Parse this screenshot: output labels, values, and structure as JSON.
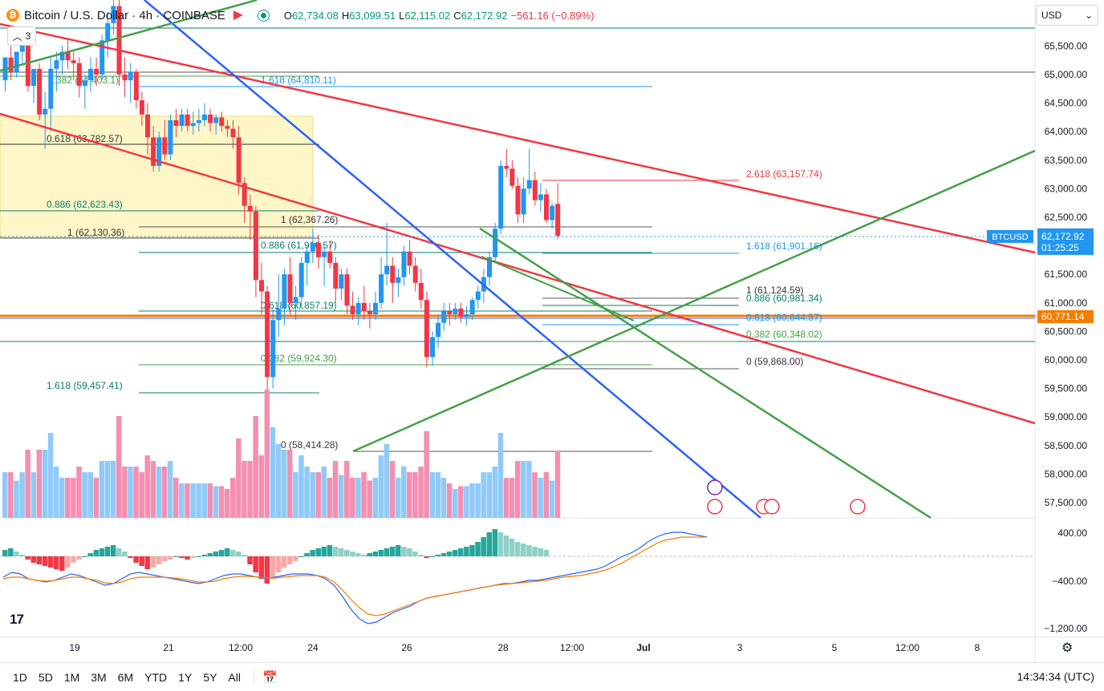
{
  "header": {
    "symbol": "Bitcoin / U.S. Dollar · 4h · COINBASE",
    "open_label": "O",
    "open": "62,734.08",
    "high_label": "H",
    "high": "63,099.51",
    "low_label": "L",
    "low": "62,115.02",
    "close_label": "C",
    "close": "62,172.92",
    "change": "−561.16 (−0.89%)",
    "indicator_count": "3",
    "coin_glyph": "₿"
  },
  "currency_select": {
    "value": "USD"
  },
  "footer": {
    "timeframes": [
      "1D",
      "5D",
      "1M",
      "3M",
      "6M",
      "YTD",
      "1Y",
      "5Y",
      "All"
    ],
    "clock": "14:34:34 (UTC)"
  },
  "colors": {
    "up": "#2196f3",
    "down": "#f23645",
    "up_vol": "#90caf9",
    "down_vol": "#f48fb1",
    "blue_line": "#2962ff",
    "red_line": "#f23645",
    "green_line": "#43a047",
    "orange": "#f57c00"
  },
  "chart_data": {
    "type": "candlestick",
    "symbol": "BTCUSD",
    "timeframe": "4h",
    "price_axis": {
      "ticks": [
        57500,
        58000,
        58500,
        59000,
        59500,
        60000,
        60500,
        61000,
        61500,
        62000,
        62500,
        63000,
        63500,
        64000,
        64500,
        65000,
        65500
      ],
      "tick_labels": [
        "57,500.00",
        "58,000.00",
        "58,500.00",
        "59,000.00",
        "59,500.00",
        "60,000.00",
        "60,500.00",
        "61,000.00",
        "61,500.00",
        "62,000.00",
        "62,500.00",
        "63,000.00",
        "63,500.00",
        "64,000.00",
        "64,500.00",
        "65,000.00",
        "65,500.00"
      ]
    },
    "time_axis": {
      "labels": [
        "19",
        "21",
        "12:00",
        "24",
        "26",
        "28",
        "12:00",
        "Jul",
        "3",
        "5",
        "12:00",
        "8"
      ]
    },
    "last_price": {
      "label": "BTCUSD",
      "value": "62,172.92",
      "countdown": "01:25:25"
    },
    "level_marker": {
      "value": "60,771.14"
    },
    "candles": [
      [
        64900,
        65300,
        64700,
        65300
      ],
      [
        65300,
        65500,
        64900,
        65050
      ],
      [
        65050,
        65400,
        64950,
        65400
      ],
      [
        65400,
        65800,
        65200,
        65650
      ],
      [
        65650,
        65700,
        64700,
        64800
      ],
      [
        64800,
        65100,
        64500,
        65100
      ],
      [
        65100,
        65200,
        64200,
        64300
      ],
      [
        64300,
        64700,
        63700,
        64400
      ],
      [
        64400,
        65300,
        64000,
        65100
      ],
      [
        65100,
        65400,
        64700,
        65250
      ],
      [
        65250,
        65500,
        65000,
        65400
      ],
      [
        65400,
        65600,
        65100,
        65250
      ],
      [
        65250,
        65400,
        64900,
        65200
      ],
      [
        65200,
        65300,
        64600,
        64800
      ],
      [
        64800,
        65000,
        64400,
        64900
      ],
      [
        64900,
        65300,
        64700,
        65100
      ],
      [
        65100,
        65300,
        64800,
        65000
      ],
      [
        65000,
        65700,
        64900,
        65600
      ],
      [
        65600,
        66100,
        65300,
        65900
      ],
      [
        65900,
        66500,
        65700,
        66200
      ],
      [
        66200,
        66400,
        64800,
        65000
      ],
      [
        65000,
        65300,
        64600,
        64900
      ],
      [
        64900,
        65200,
        64500,
        65050
      ],
      [
        65050,
        65100,
        64400,
        64550
      ],
      [
        64550,
        64700,
        64100,
        64300
      ],
      [
        64300,
        64500,
        63600,
        63900
      ],
      [
        63900,
        64100,
        63300,
        63400
      ],
      [
        63400,
        64000,
        63300,
        63900
      ],
      [
        63900,
        64200,
        63500,
        63600
      ],
      [
        63600,
        64300,
        63500,
        64200
      ],
      [
        64200,
        64400,
        63900,
        64100
      ],
      [
        64100,
        64400,
        64000,
        64300
      ],
      [
        64300,
        64400,
        64000,
        64100
      ],
      [
        64100,
        64350,
        63950,
        64150
      ],
      [
        64150,
        64400,
        64000,
        64200
      ],
      [
        64200,
        64500,
        64100,
        64300
      ],
      [
        64300,
        64400,
        64000,
        64150
      ],
      [
        64150,
        64300,
        63950,
        64250
      ],
      [
        64250,
        64350,
        64000,
        64100
      ],
      [
        64100,
        64200,
        63900,
        64050
      ],
      [
        64050,
        64200,
        63700,
        63900
      ],
      [
        63900,
        64100,
        62900,
        63100
      ],
      [
        63100,
        63200,
        62400,
        62700
      ],
      [
        62700,
        62900,
        62100,
        62600
      ],
      [
        62600,
        62700,
        61100,
        61400
      ],
      [
        61400,
        61700,
        60800,
        61200
      ],
      [
        61200,
        61300,
        58414,
        59700
      ],
      [
        59700,
        60900,
        59500,
        60700
      ],
      [
        60700,
        61500,
        60400,
        60900
      ],
      [
        60900,
        61600,
        60600,
        61500
      ],
      [
        61500,
        61800,
        60800,
        61000
      ],
      [
        61000,
        61300,
        60700,
        61100
      ],
      [
        61100,
        61800,
        60900,
        61700
      ],
      [
        61700,
        62000,
        61300,
        61900
      ],
      [
        61900,
        62300,
        61700,
        62050
      ],
      [
        62050,
        62200,
        61600,
        61800
      ],
      [
        61800,
        62000,
        61300,
        61900
      ],
      [
        61900,
        62100,
        61600,
        61700
      ],
      [
        61700,
        61800,
        61000,
        61250
      ],
      [
        61250,
        61600,
        61050,
        61500
      ],
      [
        61500,
        61600,
        60800,
        60950
      ],
      [
        60950,
        61200,
        60700,
        60800
      ],
      [
        60800,
        61100,
        60600,
        61000
      ],
      [
        61000,
        61300,
        60700,
        60850
      ],
      [
        60850,
        61000,
        60550,
        60800
      ],
      [
        60800,
        61200,
        60700,
        61000
      ],
      [
        61000,
        61800,
        60900,
        61500
      ],
      [
        61500,
        62400,
        61300,
        61650
      ],
      [
        61650,
        61800,
        61000,
        61350
      ],
      [
        61350,
        61600,
        61100,
        61450
      ],
      [
        61450,
        62000,
        61300,
        61900
      ],
      [
        61900,
        62100,
        61500,
        61650
      ],
      [
        61650,
        61800,
        61200,
        61350
      ],
      [
        61350,
        61600,
        60900,
        61050
      ],
      [
        61050,
        61200,
        59868,
        60050
      ],
      [
        60050,
        60500,
        59900,
        60400
      ],
      [
        60400,
        60800,
        60200,
        60650
      ],
      [
        60650,
        61000,
        60500,
        60850
      ],
      [
        60850,
        61000,
        60600,
        60800
      ],
      [
        60800,
        61000,
        60700,
        60900
      ],
      [
        60900,
        61000,
        60650,
        60750
      ],
      [
        60750,
        60950,
        60600,
        60800
      ],
      [
        60800,
        61100,
        60700,
        61050
      ],
      [
        61050,
        61300,
        60900,
        61200
      ],
      [
        61200,
        61600,
        61000,
        61450
      ],
      [
        61450,
        61900,
        61300,
        61800
      ],
      [
        61800,
        62400,
        61700,
        62300
      ],
      [
        62300,
        63500,
        62200,
        63400
      ],
      [
        63400,
        63700,
        63200,
        63350
      ],
      [
        63350,
        63500,
        63000,
        63050
      ],
      [
        63050,
        63200,
        62400,
        62550
      ],
      [
        62550,
        63200,
        62400,
        63000
      ],
      [
        63000,
        63700,
        62900,
        63150
      ],
      [
        63150,
        63300,
        62700,
        62800
      ],
      [
        62800,
        63100,
        62600,
        62900
      ],
      [
        62900,
        63000,
        62400,
        62450
      ],
      [
        62450,
        62750,
        62300,
        62700
      ],
      [
        62734.08,
        63099.51,
        62115.02,
        62172.92
      ]
    ],
    "fib_labels": [
      "0.382 (64,403.1)",
      "0.618 (63,782.57)",
      "0.886 (62,623.43)",
      "1 (62,130.36)",
      "1.618 (64,810.11)",
      "1 (62,367.26)",
      "0.886 (61,916.57)",
      "0.618 (60,857.19)",
      "0.382 (59,924.30)",
      "1.618 (59,457.41)",
      "0 (58,414.28)",
      "2.618 (63,157.74)",
      "1.618 (61,901.16)",
      "1 (61,124.59)",
      "0.886 (60,981.34)",
      "0.618 (60,644.57)",
      "0.382 (60,348.02)",
      "0 (59,868.00)"
    ],
    "macd_axis": {
      "tick_labels": [
        "400.00",
        "−400.00",
        "−1,200.00"
      ]
    }
  }
}
